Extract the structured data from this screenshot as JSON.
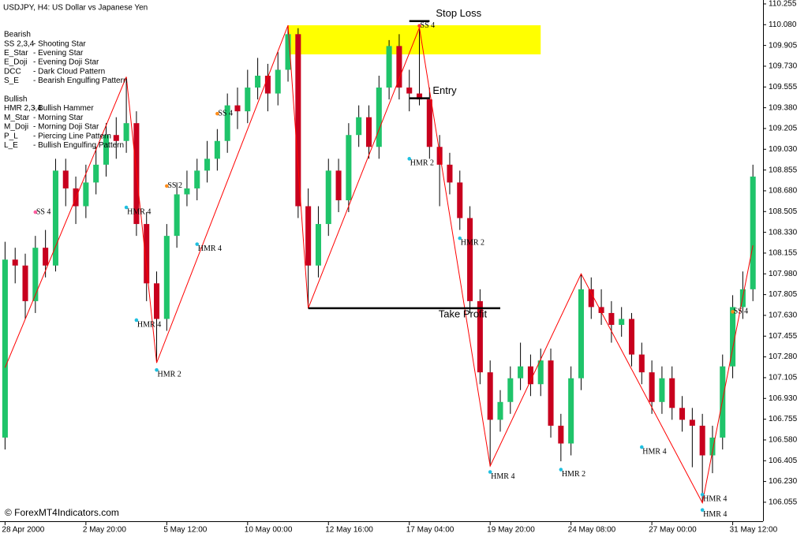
{
  "chart_data": {
    "type": "candlestick",
    "title": "USDJPY, H4:  US Dollar vs Japanese Yen",
    "watermark": "© ForexMT4Indicators.com",
    "legend_groups": [
      {
        "title": "Bearish",
        "rows": [
          [
            "SS 2,3,4",
            "- Shooting Star"
          ],
          [
            "E_Star",
            "- Evening Star"
          ],
          [
            "E_Doji",
            "- Evening Doji Star"
          ],
          [
            "DCC",
            "- Dark Cloud Pattern"
          ],
          [
            "S_E",
            "- Bearish Engulfing Pattern"
          ]
        ]
      },
      {
        "title": "Bullish",
        "rows": [
          [
            "HMR 2,3,4",
            "- Bullish Hammer"
          ],
          [
            "M_Star",
            "- Morning Star"
          ],
          [
            "M_Doji",
            "- Morning Doji Star"
          ],
          [
            "P_L",
            "- Piercing Line Pattern"
          ],
          [
            "L_E",
            "- Bullish Engulfing Pattern"
          ]
        ]
      }
    ],
    "bull_color": "#1fc46a",
    "bear_color": "#c8001e",
    "open": [
      106.6,
      108.1,
      108.05,
      107.75,
      108.2,
      108.05,
      108.85,
      108.7,
      108.55,
      108.75,
      108.9,
      109.15,
      109.1,
      109.25,
      108.4,
      107.9,
      107.6,
      108.3,
      108.65,
      108.7,
      108.85,
      108.95,
      109.1,
      109.4,
      109.35,
      109.55,
      109.65,
      109.5,
      109.7,
      110.0,
      108.55,
      108.05,
      108.4,
      108.85,
      108.6,
      109.15,
      109.3,
      109.05,
      109.55,
      109.9,
      109.55,
      109.5,
      109.45,
      109.05,
      108.9,
      108.75,
      108.45,
      107.75,
      107.15,
      106.75,
      106.9,
      107.1,
      107.2,
      107.05,
      107.25,
      106.7,
      106.55,
      107.1,
      107.85,
      107.7,
      107.65,
      107.55,
      107.6,
      107.3,
      107.15,
      106.9,
      107.1,
      106.85,
      106.75,
      106.7,
      106.45,
      106.6,
      107.2,
      107.7,
      107.85
    ],
    "high": [
      108.25,
      108.2,
      108.15,
      108.3,
      108.35,
      108.95,
      108.95,
      108.8,
      108.9,
      109.05,
      109.25,
      109.3,
      109.64,
      109.35,
      108.5,
      108.0,
      108.4,
      108.75,
      108.85,
      108.95,
      109.1,
      109.2,
      109.5,
      109.55,
      109.7,
      109.8,
      109.75,
      109.85,
      110.075,
      110.05,
      108.7,
      108.55,
      108.95,
      108.95,
      109.25,
      109.4,
      109.4,
      109.65,
      109.95,
      110.0,
      109.7,
      110.055,
      109.55,
      109.15,
      109.0,
      108.85,
      108.55,
      107.85,
      107.25,
      107.0,
      107.2,
      107.4,
      107.3,
      107.35,
      107.35,
      106.8,
      107.2,
      107.98,
      107.95,
      107.85,
      107.75,
      107.7,
      107.65,
      107.4,
      107.25,
      107.2,
      107.2,
      106.95,
      106.85,
      106.8,
      106.7,
      107.3,
      107.8,
      108.0,
      108.9
    ],
    "low": [
      106.5,
      107.9,
      107.6,
      107.65,
      107.95,
      108.0,
      108.55,
      108.4,
      108.45,
      108.65,
      108.8,
      108.95,
      109.0,
      108.3,
      107.75,
      107.23,
      107.5,
      108.2,
      108.55,
      108.6,
      108.75,
      108.85,
      109.0,
      109.2,
      109.25,
      109.45,
      109.35,
      109.4,
      109.6,
      108.45,
      107.69,
      107.95,
      108.3,
      108.5,
      108.5,
      109.05,
      108.95,
      108.95,
      109.45,
      109.45,
      109.35,
      109.4,
      108.95,
      108.55,
      108.65,
      108.35,
      107.65,
      107.05,
      106.36,
      106.65,
      106.8,
      107.0,
      106.95,
      106.95,
      106.6,
      106.4,
      106.45,
      107.0,
      107.6,
      107.55,
      107.4,
      107.45,
      107.2,
      107.05,
      106.8,
      106.8,
      106.75,
      106.65,
      106.35,
      106.05,
      106.3,
      106.5,
      107.1,
      107.6,
      107.75
    ],
    "close": [
      108.1,
      108.05,
      107.75,
      108.2,
      108.05,
      108.85,
      108.7,
      108.55,
      108.75,
      108.9,
      109.15,
      109.1,
      109.25,
      108.4,
      107.9,
      107.6,
      108.3,
      108.65,
      108.7,
      108.85,
      108.95,
      109.1,
      109.4,
      109.35,
      109.55,
      109.65,
      109.5,
      109.7,
      110.0,
      108.55,
      108.05,
      108.4,
      108.85,
      108.6,
      109.15,
      109.3,
      109.05,
      109.55,
      109.9,
      109.55,
      109.5,
      109.45,
      109.05,
      108.9,
      108.75,
      108.45,
      107.75,
      107.15,
      106.75,
      106.9,
      107.1,
      107.2,
      107.05,
      107.25,
      106.7,
      106.55,
      107.1,
      107.85,
      107.7,
      107.65,
      107.55,
      107.6,
      107.3,
      107.15,
      106.9,
      107.1,
      106.85,
      106.75,
      106.7,
      106.45,
      106.6,
      107.2,
      107.7,
      107.85,
      108.8
    ],
    "zigzag": {
      "color": "#ff0000",
      "x": [
        0,
        12,
        15,
        28,
        30,
        41,
        48,
        57,
        69,
        74
      ],
      "values": [
        107.19,
        109.64,
        107.23,
        110.075,
        107.69,
        110.055,
        106.36,
        107.98,
        106.05,
        108.22
      ]
    },
    "zone": {
      "from": 109.83,
      "to": 110.075,
      "x": [
        28,
        53
      ],
      "color": "#ffff00"
    },
    "levels": [
      {
        "label": "Stop Loss",
        "value": 110.11,
        "x": [
          40,
          42
        ]
      },
      {
        "label": "Entry",
        "value": 109.46,
        "x": [
          40,
          42
        ]
      },
      {
        "label": "Take Profit",
        "value": 107.69,
        "x": [
          30,
          49
        ]
      }
    ],
    "markers": [
      {
        "label": "SS 4",
        "x": 3,
        "price": 108.5,
        "color": "#ff5fa0"
      },
      {
        "label": "HMR 4",
        "x": 12,
        "price": 108.54,
        "color": "#2020d0"
      },
      {
        "label": "HMR 4",
        "x": 13,
        "price": 107.59,
        "color": "#2020d0"
      },
      {
        "label": "HMR 2",
        "x": 15,
        "price": 107.17,
        "color": "#2020d0"
      },
      {
        "label": "SS 2",
        "x": 16,
        "price": 108.72,
        "color": "#ff8c1a"
      },
      {
        "label": "HMR 4",
        "x": 19,
        "price": 108.23,
        "color": "#2020d0"
      },
      {
        "label": "SS 4",
        "x": 21,
        "price": 109.33,
        "color": "#ff8c1a"
      },
      {
        "label": "HMR 2",
        "x": 40,
        "price": 108.95,
        "color": "#2020d0"
      },
      {
        "label": "SS 4",
        "x": 41,
        "price": 110.07,
        "color": "#ff3030"
      },
      {
        "label": "HMR 2",
        "x": 45,
        "price": 108.28,
        "color": "#2020d0"
      },
      {
        "label": "HMR 4",
        "x": 48,
        "price": 106.31,
        "color": "#2020d0"
      },
      {
        "label": "HMR 2",
        "x": 55,
        "price": 106.33,
        "color": "#2020d0"
      },
      {
        "label": "HMR 4",
        "x": 63,
        "price": 106.52,
        "color": "#2020d0"
      },
      {
        "label": "HMR 4",
        "x": 69,
        "price": 106.12,
        "color": "#2020d0"
      },
      {
        "label": "HMR 4",
        "x": 69,
        "price": 105.99,
        "color": "#2020d0"
      },
      {
        "label": "SS 4",
        "x": 72,
        "price": 107.66,
        "color": "#ff8c1a"
      }
    ],
    "xlim": [
      -0.5,
      75
    ],
    "xticks": [
      {
        "value": 0,
        "label": "28 Apr 2000"
      },
      {
        "value": 8,
        "label": "2 May 20:00"
      },
      {
        "value": 16,
        "label": "5 May 12:00"
      },
      {
        "value": 24,
        "label": "10 May 00:00"
      },
      {
        "value": 32,
        "label": "12 May 16:00"
      },
      {
        "value": 40,
        "label": "17 May 04:00"
      },
      {
        "value": 48,
        "label": "19 May 20:00"
      },
      {
        "value": 56,
        "label": "24 May 08:00"
      },
      {
        "value": 64,
        "label": "27 May 00:00"
      },
      {
        "value": 72,
        "label": "31 May 12:00"
      }
    ],
    "ylim": [
      105.895,
      110.288
    ],
    "yticks": [
      110.255,
      {
        "value": 110.08,
        "label": "110.080"
      },
      109.905,
      {
        "value": 109.73,
        "label": "109.730"
      },
      109.555,
      {
        "value": 109.38,
        "label": "109.380"
      },
      109.205,
      {
        "value": 109.03,
        "label": "109.030"
      },
      108.855,
      {
        "value": 108.68,
        "label": "108.680"
      },
      108.505,
      {
        "value": 108.33,
        "label": "108.330"
      },
      108.155,
      {
        "value": 107.98,
        "label": "107.980"
      },
      107.805,
      {
        "value": 107.63,
        "label": "107.630"
      },
      107.455,
      {
        "value": 107.28,
        "label": "107.280"
      },
      107.105,
      {
        "value": 106.93,
        "label": "106.930"
      },
      106.755,
      {
        "value": 106.58,
        "label": "106.580"
      },
      106.405,
      {
        "value": 106.23,
        "label": "106.230"
      },
      106.055
    ]
  }
}
